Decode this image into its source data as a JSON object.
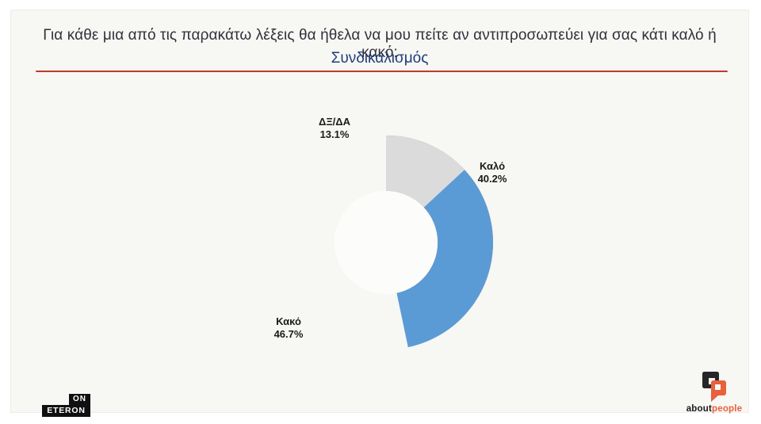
{
  "header": {
    "title": "Για κάθε μια από τις παρακάτω λέξεις θα ήθελα να μου πείτε αν αντιπροσωπεύει για σας κάτι καλό ή κακό:",
    "subtitle": "Συνδικαλισμός"
  },
  "chart_data": {
    "type": "pie",
    "subtype": "donut",
    "title": "Συνδικαλισμός",
    "categories": [
      "Καλό",
      "Κακό",
      "ΔΞ/ΔΑ"
    ],
    "values": [
      40.2,
      46.7,
      13.1
    ],
    "value_suffix": "%",
    "colors": [
      "#e8793c",
      "#5b9bd5",
      "#dbdbdb"
    ],
    "start_angle_deg": 0,
    "direction": "clockwise",
    "inner_radius_ratio": 0.482,
    "legend_position": "none",
    "labels_outside": true
  },
  "slice_labels": {
    "kalo": {
      "name": "Καλό",
      "value": "40.2%"
    },
    "kako": {
      "name": "Κακό",
      "value": "46.7%"
    },
    "dxda": {
      "name": "ΔΞ/ΔΑ",
      "value": "13.1%"
    }
  },
  "footer": {
    "eteron_logo": {
      "top": "ON",
      "bottom": "ETERON"
    },
    "aboutpeople_logo": {
      "text_black": "about",
      "text_orange": "people"
    }
  },
  "colors": {
    "accent_red": "#c0392b",
    "subtitle_navy": "#1f3d7a",
    "slide_background": "#f7f7f4",
    "donut_hole": "#fcfcfa"
  }
}
